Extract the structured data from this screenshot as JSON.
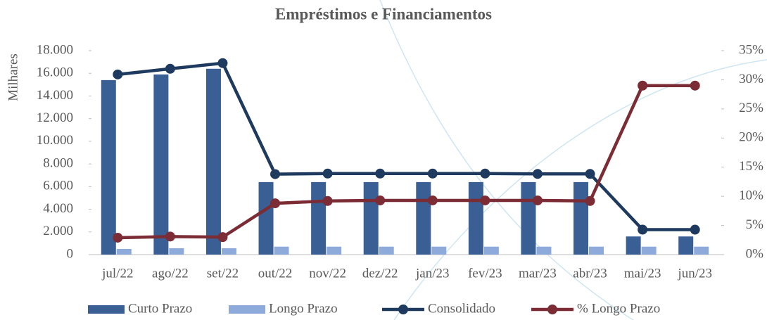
{
  "chart_data": {
    "type": "bar",
    "title": "Empréstimos e Financiamentos",
    "y_label": "Milhares",
    "categories": [
      "jul/22",
      "ago/22",
      "set/22",
      "out/22",
      "nov/22",
      "dez/22",
      "jan/23",
      "fev/23",
      "mar/23",
      "abr/23",
      "mai/23",
      "jun/23"
    ],
    "series": [
      {
        "name": "Curto Prazo",
        "type": "bar",
        "color": "#3a5f94",
        "values": [
          15400,
          15900,
          16400,
          6400,
          6400,
          6400,
          6400,
          6400,
          6400,
          6400,
          1600,
          1600
        ]
      },
      {
        "name": "Longo Prazo",
        "type": "bar",
        "color": "#8eaadb",
        "values": [
          500,
          560,
          560,
          700,
          700,
          700,
          700,
          700,
          700,
          700,
          700,
          700
        ]
      },
      {
        "name": "Consolidado",
        "type": "line",
        "color": "#1f3a5f",
        "values": [
          15900,
          16400,
          16900,
          7100,
          7150,
          7150,
          7150,
          7150,
          7120,
          7120,
          2200,
          2200
        ]
      },
      {
        "name": "% Longo Prazo",
        "type": "line",
        "axis": "y2",
        "color": "#7b2c34",
        "values": [
          2.9,
          3.1,
          3.0,
          8.8,
          9.2,
          9.3,
          9.3,
          9.3,
          9.3,
          9.2,
          29.0,
          29.0
        ]
      }
    ],
    "ylim": [
      0,
      18000
    ],
    "yticks": [
      0,
      {
        "value": 2000,
        "label": "2.000"
      },
      {
        "value": 4000,
        "label": "4.000"
      },
      {
        "value": 6000,
        "label": "6.000"
      },
      {
        "value": 8000,
        "label": "8.000"
      },
      {
        "value": 10000,
        "label": "10.000"
      },
      {
        "value": 12000,
        "label": "12.000"
      },
      {
        "value": 14000,
        "label": "14.000"
      },
      {
        "value": 16000,
        "label": "16.000"
      },
      {
        "value": 18000,
        "label": "18.000"
      }
    ],
    "y2lim": [
      0,
      35
    ],
    "y2ticks": [
      {
        "value": 0,
        "label": "0%"
      },
      {
        "value": 5,
        "label": "5%"
      },
      {
        "value": 10,
        "label": "10%"
      },
      {
        "value": 15,
        "label": "15%"
      },
      {
        "value": 20,
        "label": "20%"
      },
      {
        "value": 25,
        "label": "25%"
      },
      {
        "value": 30,
        "label": "30%"
      },
      {
        "value": 35,
        "label": "35%"
      }
    ]
  }
}
